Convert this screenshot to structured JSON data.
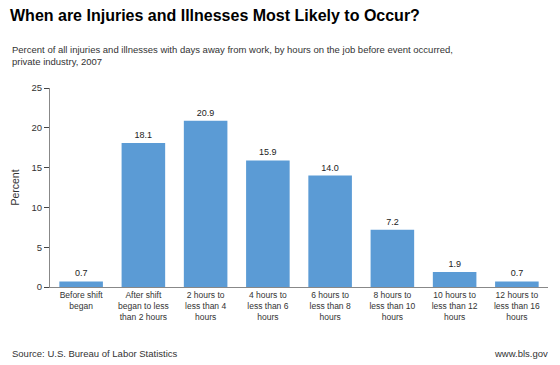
{
  "chart_data": {
    "type": "bar",
    "title": "When are Injuries and Illnesses Most Likely to Occur?",
    "subtitle": "Percent of all injuries and illnesses with days away from work, by hours on the job before event occurred,\nprivate industry, 2007",
    "categories": [
      "Before shift\nbegan",
      "After shift\nbegan to less\nthan 2 hours",
      "2 hours to\nless than 4\nhours",
      "4 hours to\nless than 6\nhours",
      "6 hours to\nless than 8\nhours",
      "8 hours to\nless than 10\nhours",
      "10 hours to\nless than 12\nhours",
      "12 hours to\nless than 16\nhours"
    ],
    "values": [
      0.7,
      18.1,
      20.9,
      15.9,
      14.0,
      7.2,
      1.9,
      0.7
    ],
    "value_labels": [
      "0.7",
      "18.1",
      "20.9",
      "15.9",
      "14.0",
      "7.2",
      "1.9",
      "0.7"
    ],
    "data_labels": true,
    "color": "#5b9bd5",
    "ylabel": "Percent",
    "ylim": [
      0,
      25
    ],
    "yticks": [
      0,
      5,
      10,
      15,
      20,
      25
    ],
    "grid": false,
    "annotations": [
      "Source: U.S. Bureau of Labor Statistics",
      "www.bls.gov"
    ]
  }
}
